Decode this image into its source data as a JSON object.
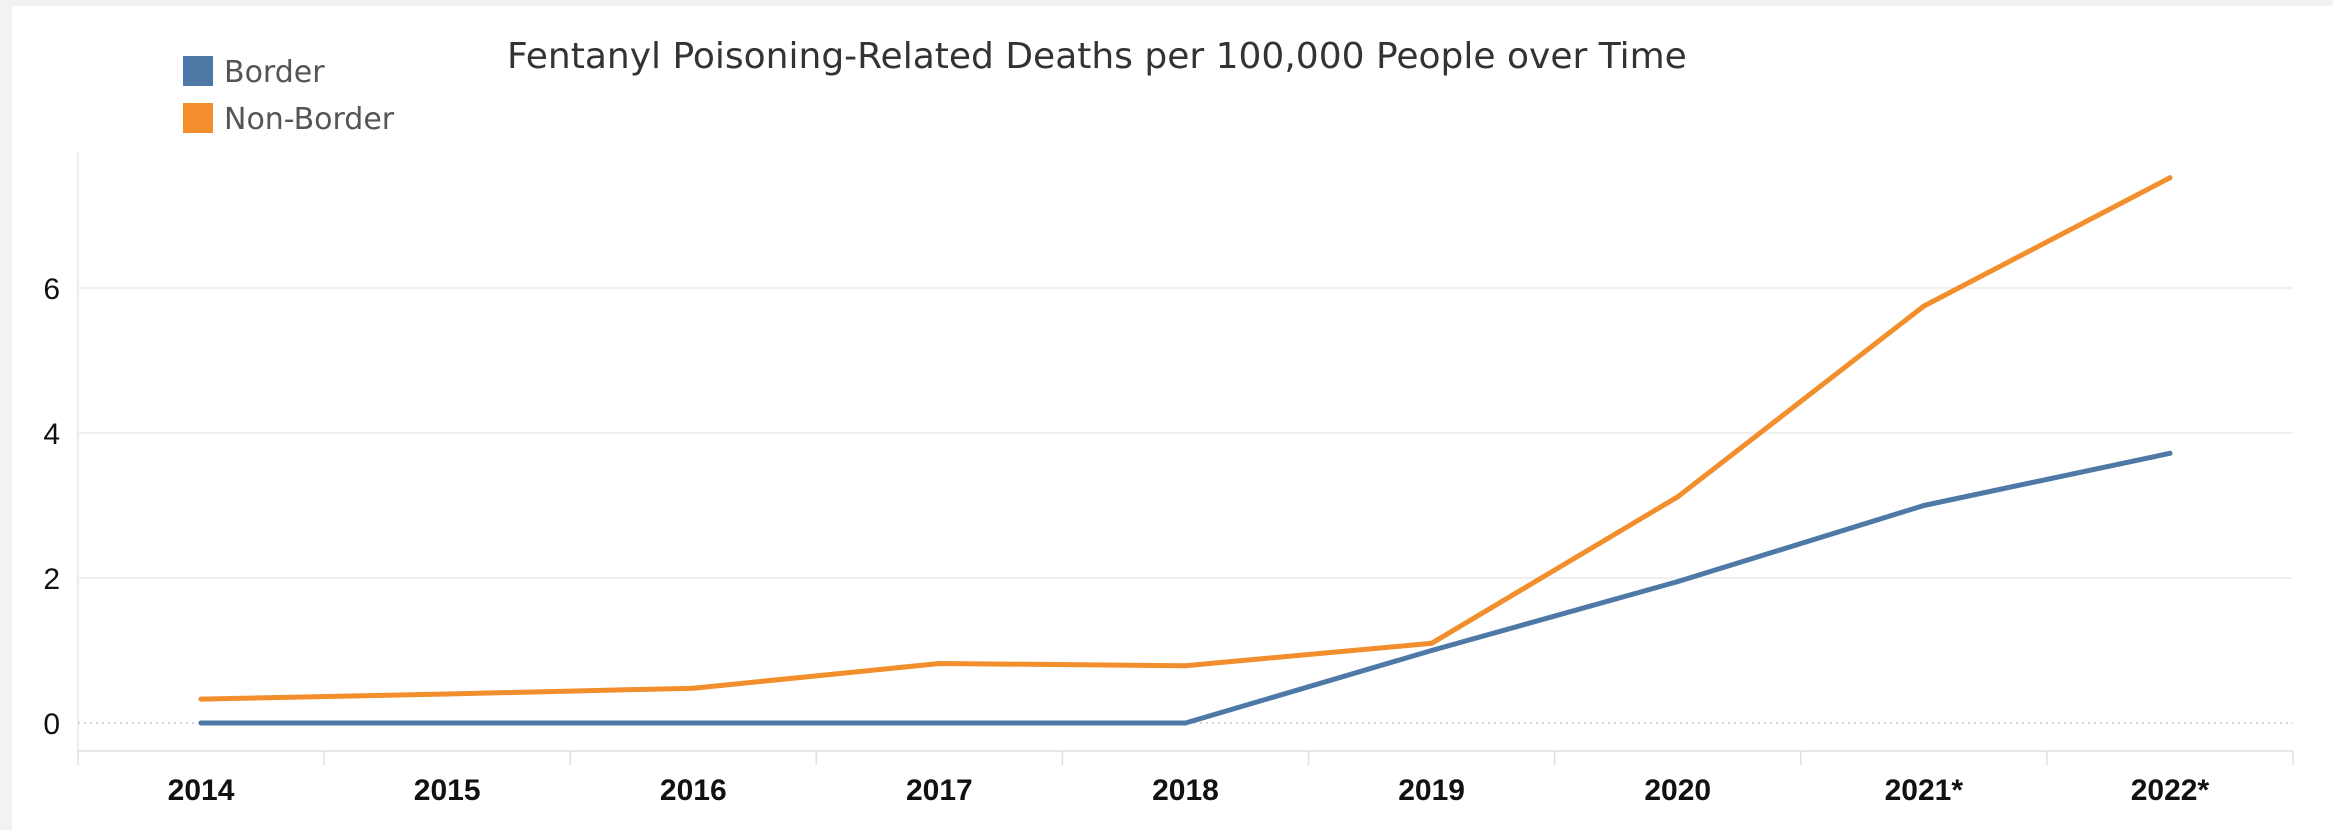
{
  "chart_data": {
    "type": "line",
    "title": "Fentanyl Poisoning-Related Deaths per 100,000 People over Time",
    "categories": [
      "2014",
      "2015",
      "2016",
      "2017",
      "2018",
      "2019",
      "2020",
      "2021*",
      "2022*"
    ],
    "series": [
      {
        "name": "Border",
        "color": "#4e79a7",
        "values": [
          0,
          0,
          0,
          0,
          0,
          1.0,
          1.95,
          3.0,
          3.72
        ]
      },
      {
        "name": "Non-Border",
        "color": "#f28e2b",
        "values": [
          0.33,
          0.4,
          0.48,
          0.82,
          0.79,
          1.1,
          3.12,
          5.75,
          7.52
        ]
      }
    ],
    "y_ticks": [
      "0",
      "2",
      "4",
      "6"
    ],
    "ylim": [
      -0.4,
      8
    ],
    "xlabel": "",
    "ylabel": "",
    "grid": true,
    "legend_position": "top-left"
  }
}
